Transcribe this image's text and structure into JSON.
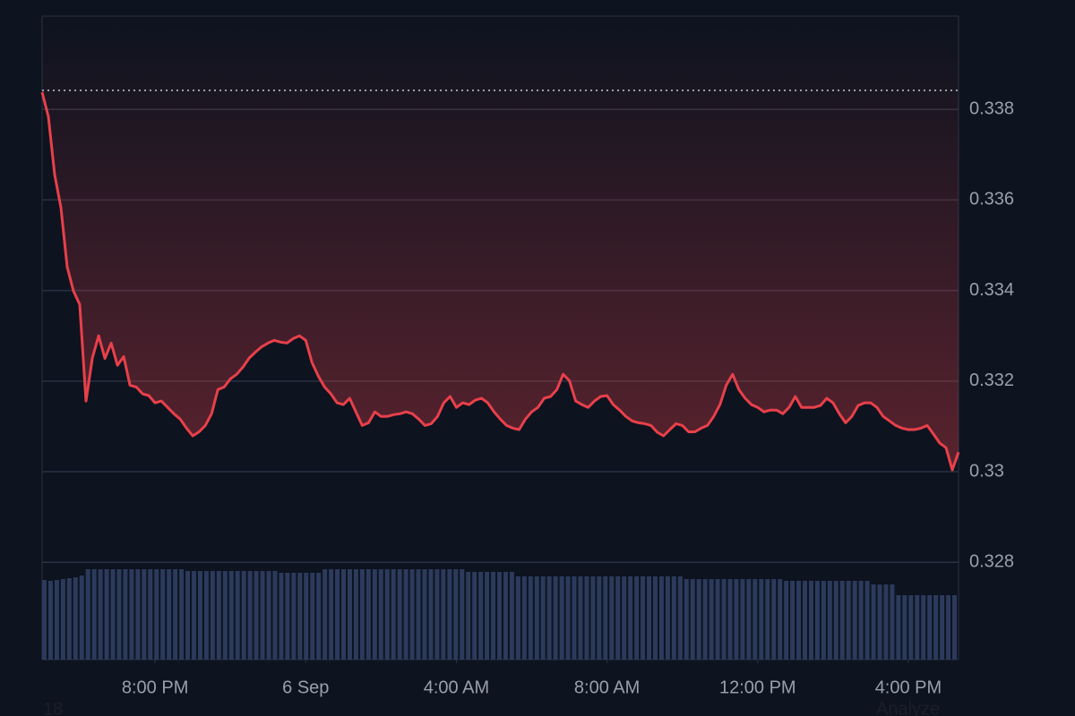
{
  "chart_data": {
    "type": "line",
    "color": "#e8404a",
    "values": [
      0.33838,
      0.33784,
      0.33656,
      0.33583,
      0.33452,
      0.33399,
      0.33369,
      0.33156,
      0.33251,
      0.333,
      0.3325,
      0.33284,
      0.33235,
      0.33254,
      0.33191,
      0.33187,
      0.33172,
      0.33168,
      0.33152,
      0.33156,
      0.33142,
      0.33128,
      0.33116,
      0.33096,
      0.33079,
      0.33088,
      0.33102,
      0.33128,
      0.33181,
      0.33187,
      0.33205,
      0.33215,
      0.33231,
      0.33251,
      0.33264,
      0.33276,
      0.33284,
      0.3329,
      0.33286,
      0.33284,
      0.33294,
      0.333,
      0.3329,
      0.33241,
      0.33211,
      0.33187,
      0.33172,
      0.33152,
      0.33148,
      0.33162,
      0.33132,
      0.33102,
      0.33108,
      0.33132,
      0.33122,
      0.33122,
      0.33126,
      0.33128,
      0.33132,
      0.33128,
      0.33116,
      0.33102,
      0.33106,
      0.33122,
      0.33152,
      0.33166,
      0.33142,
      0.33152,
      0.33148,
      0.33158,
      0.33162,
      0.33152,
      0.33132,
      0.33116,
      0.33102,
      0.33096,
      0.33093,
      0.33116,
      0.33132,
      0.33142,
      0.33162,
      0.33166,
      0.33181,
      0.33215,
      0.33201,
      0.33156,
      0.33148,
      0.33142,
      0.33156,
      0.33166,
      0.33168,
      0.33148,
      0.33136,
      0.33122,
      0.33112,
      0.33108,
      0.33106,
      0.33102,
      0.33087,
      0.33079,
      0.33093,
      0.33106,
      0.33102,
      0.33088,
      0.33088,
      0.33096,
      0.33102,
      0.33122,
      0.33148,
      0.33191,
      0.33215,
      0.33181,
      0.33162,
      0.33148,
      0.33142,
      0.33132,
      0.33136,
      0.33136,
      0.33128,
      0.33142,
      0.33166,
      0.33142,
      0.33142,
      0.33142,
      0.33146,
      0.33162,
      0.33152,
      0.33128,
      0.33108,
      0.33122,
      0.33146,
      0.33152,
      0.33152,
      0.33142,
      0.33122,
      0.33112,
      0.33102,
      0.33096,
      0.33093,
      0.33093,
      0.33096,
      0.33102,
      0.33083,
      0.33063,
      0.33053,
      0.33004,
      0.33043
    ],
    "reference_value": 0.33842,
    "volume": {
      "color": "#2c3a5c",
      "values": [
        89,
        88,
        89,
        90,
        91,
        92,
        94,
        101,
        101,
        101,
        101,
        101,
        101,
        101,
        101,
        101,
        101,
        101,
        101,
        101,
        101,
        101,
        101,
        99,
        99,
        99,
        99,
        99,
        99,
        99,
        99,
        99,
        99,
        99,
        99,
        99,
        99,
        99,
        97,
        97,
        97,
        97,
        97,
        97,
        97,
        101,
        101,
        101,
        101,
        101,
        101,
        101,
        101,
        101,
        101,
        101,
        101,
        101,
        101,
        101,
        101,
        101,
        101,
        101,
        101,
        101,
        101,
        101,
        98,
        98,
        98,
        98,
        98,
        98,
        98,
        98,
        93,
        93,
        93,
        93,
        93,
        93,
        93,
        93,
        93,
        93,
        93,
        93,
        93,
        93,
        93,
        93,
        93,
        93,
        93,
        93,
        93,
        93,
        93,
        93,
        93,
        93,
        93,
        90,
        90,
        90,
        90,
        90,
        90,
        90,
        90,
        90,
        90,
        90,
        90,
        90,
        90,
        90,
        90,
        88,
        88,
        88,
        88,
        88,
        88,
        88,
        88,
        88,
        88,
        88,
        88,
        88,
        88,
        84,
        84,
        84,
        84,
        72,
        72,
        72,
        72,
        72,
        72,
        72,
        72,
        72,
        72
      ]
    },
    "xlim": [
      0,
      146
    ],
    "xticks": [
      {
        "value": 18,
        "label": "8:00 PM"
      },
      {
        "value": 42,
        "label": "6 Sep"
      },
      {
        "value": 66,
        "label": "4:00 AM"
      },
      {
        "value": 90,
        "label": "8:00 AM"
      },
      {
        "value": 114,
        "label": "12:00 PM"
      },
      {
        "value": 138,
        "label": "4:00 PM"
      }
    ],
    "ylim": [
      0.32585,
      0.34006
    ],
    "yticks": [
      0.328,
      0.33,
      0.332,
      0.334,
      0.336,
      0.338
    ],
    "grid": true,
    "footer_left": "18",
    "footer_right": "Analyze"
  }
}
